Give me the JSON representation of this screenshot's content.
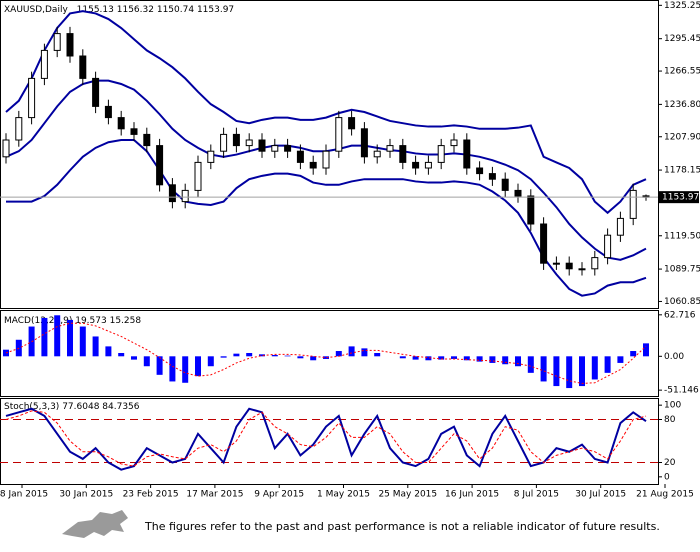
{
  "chart_data": [
    {
      "type": "candlestick",
      "title": "XAUUSD,Daily",
      "color": "#000000",
      "up_color": "#ffffff",
      "down_color": "#000000",
      "open": [
        1190,
        1205,
        1225,
        1260,
        1285,
        1300,
        1280,
        1260,
        1235,
        1225,
        1215,
        1210,
        1200,
        1165,
        1150,
        1160,
        1185,
        1195,
        1210,
        1200,
        1205,
        1195,
        1200,
        1195,
        1185,
        1180,
        1195,
        1225,
        1215,
        1190,
        1195,
        1200,
        1185,
        1180,
        1185,
        1200,
        1205,
        1180,
        1175,
        1170,
        1160,
        1155,
        1130,
        1095,
        1095,
        1090,
        1090,
        1100,
        1120,
        1135,
        1155.13
      ],
      "high": [
        1211,
        1231,
        1266,
        1291,
        1306,
        1306,
        1286,
        1266,
        1241,
        1231,
        1221,
        1216,
        1206,
        1171,
        1166,
        1191,
        1201,
        1216,
        1216,
        1211,
        1211,
        1206,
        1206,
        1201,
        1191,
        1201,
        1231,
        1231,
        1221,
        1201,
        1206,
        1206,
        1191,
        1191,
        1206,
        1211,
        1211,
        1186,
        1181,
        1176,
        1166,
        1161,
        1136,
        1101,
        1101,
        1096,
        1106,
        1126,
        1141,
        1166,
        1156.32
      ],
      "low": [
        1184,
        1199,
        1219,
        1254,
        1279,
        1274,
        1254,
        1229,
        1219,
        1209,
        1204,
        1194,
        1159,
        1144,
        1144,
        1154,
        1179,
        1189,
        1194,
        1194,
        1189,
        1189,
        1189,
        1179,
        1174,
        1174,
        1189,
        1209,
        1184,
        1184,
        1189,
        1179,
        1174,
        1174,
        1179,
        1194,
        1174,
        1169,
        1164,
        1154,
        1149,
        1124,
        1089,
        1089,
        1084,
        1084,
        1084,
        1094,
        1114,
        1129,
        1150.74
      ],
      "close": [
        1205,
        1225,
        1260,
        1285,
        1300,
        1280,
        1260,
        1235,
        1225,
        1215,
        1210,
        1200,
        1165,
        1150,
        1160,
        1185,
        1195,
        1210,
        1200,
        1205,
        1195,
        1200,
        1195,
        1185,
        1180,
        1195,
        1225,
        1215,
        1190,
        1195,
        1200,
        1185,
        1180,
        1185,
        1200,
        1205,
        1180,
        1175,
        1170,
        1160,
        1155,
        1130,
        1095,
        1095,
        1090,
        1090,
        1100,
        1120,
        1135,
        1160,
        1153.97
      ],
      "series": [
        {
          "color": "#0000a0",
          "values": [
            1230,
            1240,
            1260,
            1285,
            1305,
            1318,
            1320,
            1318,
            1313,
            1305,
            1295,
            1285,
            1278,
            1270,
            1260,
            1248,
            1237,
            1230,
            1222,
            1220,
            1223,
            1225,
            1225,
            1223,
            1223,
            1225,
            1229,
            1232,
            1230,
            1226,
            1222,
            1220,
            1218,
            1217,
            1217,
            1218,
            1217,
            1215,
            1215,
            1215,
            1216,
            1218,
            1190,
            1185,
            1180,
            1170,
            1150,
            1140,
            1150,
            1165,
            1170
          ]
        },
        {
          "color": "#0000a0",
          "values": [
            1190,
            1195,
            1205,
            1220,
            1235,
            1248,
            1255,
            1258,
            1258,
            1255,
            1250,
            1240,
            1228,
            1215,
            1205,
            1198,
            1192,
            1190,
            1192,
            1195,
            1198,
            1200,
            1200,
            1198,
            1195,
            1195,
            1197,
            1200,
            1200,
            1198,
            1196,
            1195,
            1193,
            1192,
            1192,
            1193,
            1192,
            1190,
            1187,
            1183,
            1178,
            1170,
            1158,
            1145,
            1130,
            1118,
            1108,
            1100,
            1098,
            1102,
            1108
          ]
        },
        {
          "color": "#0000a0",
          "values": [
            1150,
            1150,
            1150,
            1155,
            1165,
            1178,
            1190,
            1198,
            1203,
            1205,
            1205,
            1195,
            1178,
            1160,
            1150,
            1148,
            1147,
            1150,
            1162,
            1170,
            1173,
            1175,
            1175,
            1173,
            1167,
            1165,
            1165,
            1168,
            1170,
            1170,
            1170,
            1170,
            1168,
            1167,
            1167,
            1168,
            1167,
            1165,
            1159,
            1151,
            1140,
            1122,
            1100,
            1085,
            1072,
            1066,
            1068,
            1075,
            1078,
            1078,
            1082
          ]
        }
      ],
      "ylim": [
        1055,
        1330
      ],
      "yticks": [
        1325.25,
        1295.45,
        1266.55,
        {
          "value": 1236.8,
          "label": "1236.80"
        },
        {
          "value": 1207.9,
          "label": "1207.90"
        },
        1178.15,
        {
          "value": 1119.5,
          "label": "1119.50"
        },
        1089.75,
        1060.85
      ]
    },
    {
      "type": "bar",
      "title": "MACD(12,26,9)",
      "color": "#0000ff",
      "values": [
        10,
        25,
        45,
        58,
        62,
        55,
        45,
        30,
        15,
        5,
        -5,
        -15,
        -28,
        -38,
        -40,
        -30,
        -15,
        -2,
        4,
        5,
        3,
        2,
        1,
        -3,
        -6,
        -4,
        8,
        15,
        12,
        5,
        0,
        -3,
        -5,
        -6,
        -5,
        -4,
        -6,
        -8,
        -10,
        -12,
        -15,
        -25,
        -38,
        -45,
        -48,
        -45,
        -35,
        -25,
        -10,
        8,
        19.573
      ],
      "signal": {
        "color": "#ff0000",
        "values": [
          5,
          12,
          22,
          34,
          45,
          50,
          50,
          46,
          38,
          30,
          20,
          10,
          -2,
          -15,
          -25,
          -30,
          -28,
          -20,
          -10,
          -3,
          1,
          3,
          3,
          2,
          0,
          -2,
          0,
          5,
          9,
          9,
          6,
          3,
          0,
          -2,
          -4,
          -4,
          -5,
          -6,
          -7,
          -9,
          -11,
          -15,
          -22,
          -30,
          -37,
          -41,
          -40,
          -30,
          -20,
          -3,
          15.258
        ]
      },
      "ylim": [
        -60,
        70
      ],
      "yticks": [
        62.716,
        {
          "value": 0,
          "label": "0.00"
        },
        -51.146
      ]
    },
    {
      "type": "line",
      "title": "Stoch(5,3,3)",
      "series": [
        {
          "color": "#0000a0",
          "values": [
            85,
            90,
            95,
            85,
            60,
            35,
            25,
            40,
            20,
            10,
            15,
            40,
            30,
            20,
            25,
            60,
            40,
            20,
            70,
            95,
            90,
            40,
            60,
            30,
            45,
            70,
            85,
            30,
            60,
            85,
            40,
            20,
            15,
            25,
            60,
            70,
            30,
            15,
            60,
            85,
            50,
            15,
            20,
            40,
            35,
            45,
            25,
            20,
            75,
            90,
            77.6048
          ]
        },
        {
          "color": "#ff0000",
          "dashed": true,
          "values": [
            80,
            85,
            92,
            90,
            75,
            50,
            35,
            35,
            28,
            18,
            15,
            28,
            32,
            28,
            25,
            40,
            45,
            35,
            50,
            80,
            90,
            70,
            60,
            45,
            42,
            55,
            75,
            55,
            55,
            70,
            60,
            35,
            20,
            20,
            40,
            60,
            50,
            25,
            40,
            70,
            65,
            35,
            20,
            30,
            35,
            40,
            35,
            25,
            50,
            80,
            84.7356
          ]
        }
      ],
      "levels": [
        20,
        80
      ],
      "level_color": "#c00000",
      "ylim": [
        -10,
        110
      ],
      "yticks": [
        100,
        80,
        20,
        0
      ]
    }
  ],
  "x_axis_labels": [
    "8 Jan 2015",
    "30 Jan 2015",
    "23 Feb 2015",
    "17 Mar 2015",
    "9 Apr 2015",
    "1 May 2015",
    "25 May 2015",
    "16 Jun 2015",
    "8 Jul 2015",
    "30 Jul 2015",
    "21 Aug 2015"
  ],
  "disclaimer": "The figures refer to the past and past performance is not a reliable indicator of future results."
}
